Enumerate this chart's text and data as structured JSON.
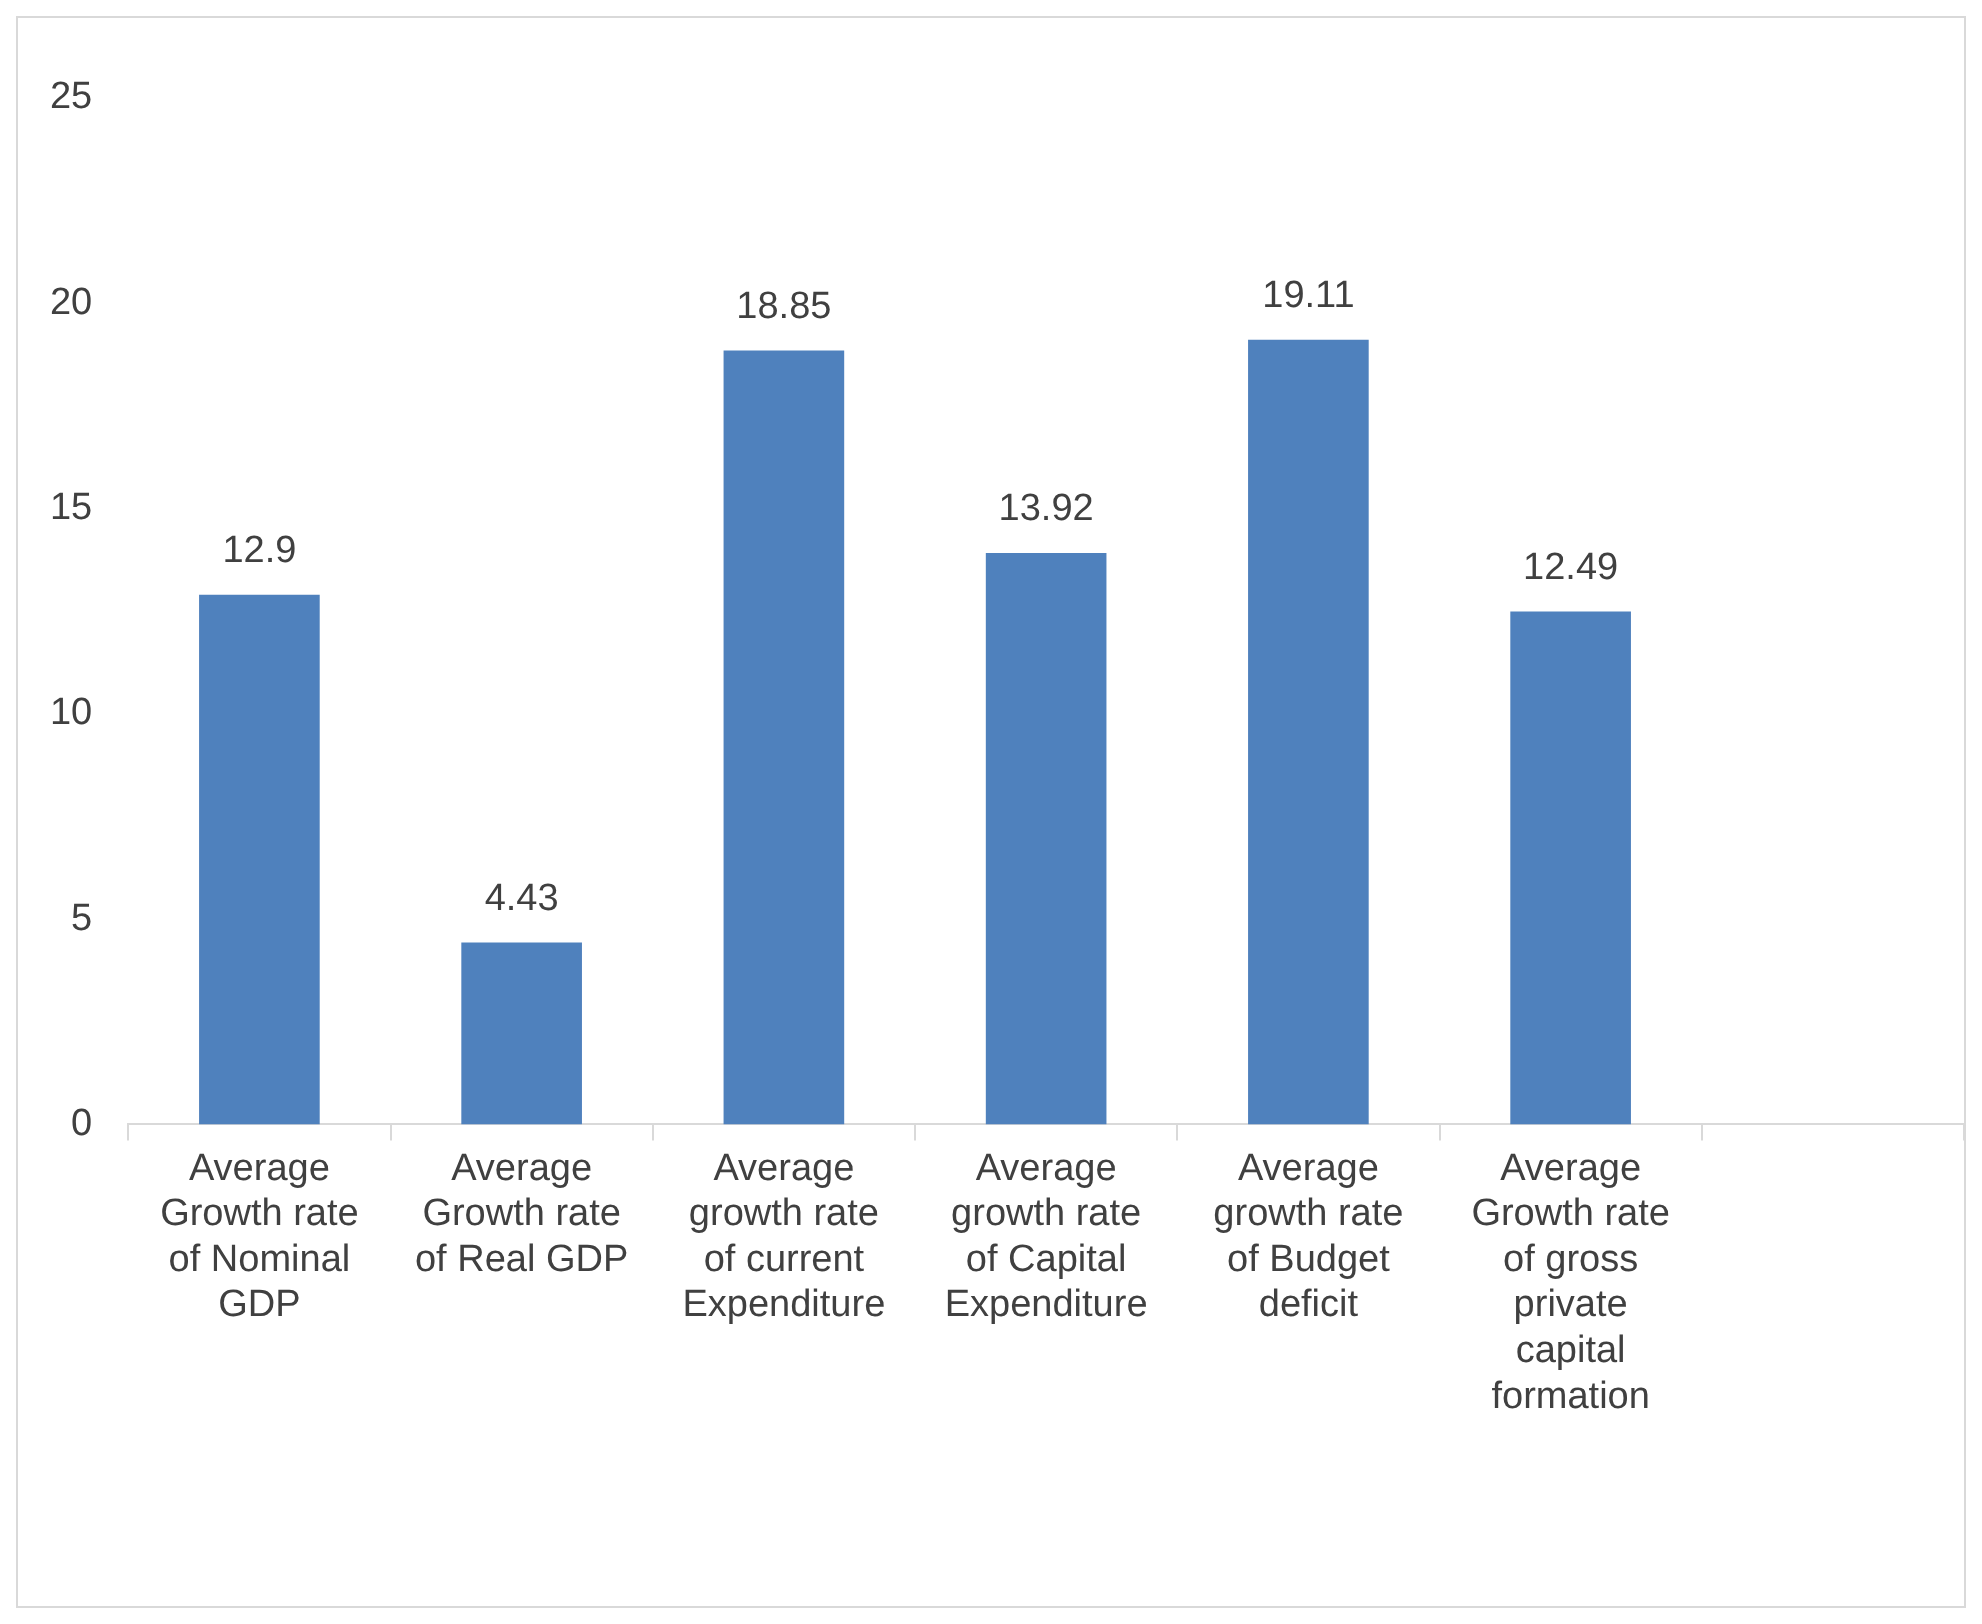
{
  "chart_data": {
    "type": "bar",
    "categories": [
      "Average Growth rate of Nominal GDP",
      "Average Growth rate of Real GDP",
      "Average growth rate of current Expenditure",
      "Average growth rate of Capital Expenditure",
      "Average growth rate of Budget deficit",
      "Average Growth rate of gross private capital formation",
      null
    ],
    "values": [
      12.9,
      4.43,
      18.85,
      13.92,
      19.11,
      12.49,
      null
    ],
    "color": "#4f81bd",
    "ylim": [
      0,
      25
    ],
    "yticks": [
      0,
      5,
      10,
      15,
      20,
      25
    ],
    "data_labels": true,
    "grid": false,
    "legend": false
  }
}
